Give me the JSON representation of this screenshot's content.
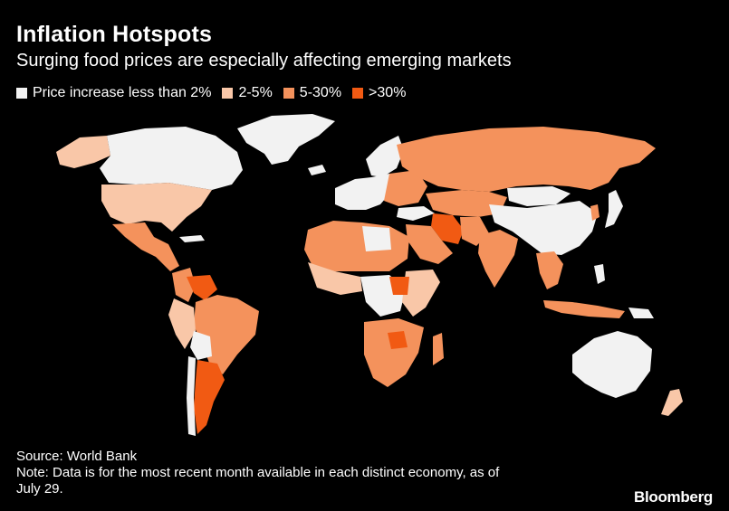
{
  "header": {
    "title": "Inflation Hotspots",
    "subtitle": "Surging food prices are especially affecting emerging markets"
  },
  "legend": [
    {
      "label": "Price increase less than 2%",
      "color": "#f2f2f2"
    },
    {
      "label": "2-5%",
      "color": "#f9c7a8"
    },
    {
      "label": "5-30%",
      "color": "#f4925c"
    },
    {
      "label": ">30%",
      "color": "#f15a13"
    }
  ],
  "footer": {
    "source": "Source: World Bank",
    "note_line1": "Note: Data is for the most recent month available in each distinct economy, as of",
    "note_line2": "July 29."
  },
  "brand": "Bloomberg"
}
